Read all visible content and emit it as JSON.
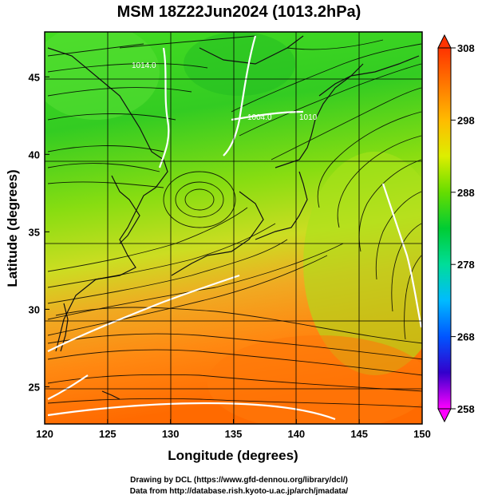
{
  "title": "MSM 18Z22Jun2024 (1013.2hPa)",
  "x_axis": {
    "label": "Longitude (degrees)",
    "ticks": [
      "120",
      "125",
      "130",
      "135",
      "140",
      "145",
      "150"
    ],
    "range": [
      120,
      150
    ]
  },
  "y_axis": {
    "label": "Latitude  (degrees)",
    "ticks": [
      "25",
      "30",
      "35",
      "40",
      "45"
    ],
    "range": [
      22.6,
      47.9
    ]
  },
  "colorbar": {
    "ticks": [
      "308",
      "298",
      "288",
      "278",
      "268",
      "258"
    ],
    "range": [
      258,
      308
    ],
    "colors": [
      "#ff00ff",
      "#3300cc",
      "#0055ff",
      "#00bbff",
      "#00dd99",
      "#00cc33",
      "#66dd00",
      "#ddee00",
      "#ffbb00",
      "#ff7700",
      "#ff3300"
    ]
  },
  "contour_labels": [
    "1014.0",
    "1004.0",
    "1010"
  ],
  "footer": {
    "line1": "Drawing by DCL (https://www.gfd-dennou.org/library/dcl/)",
    "line2": "Data from http://database.rish.kyoto-u.ac.jp/arch/jmadata/"
  }
}
